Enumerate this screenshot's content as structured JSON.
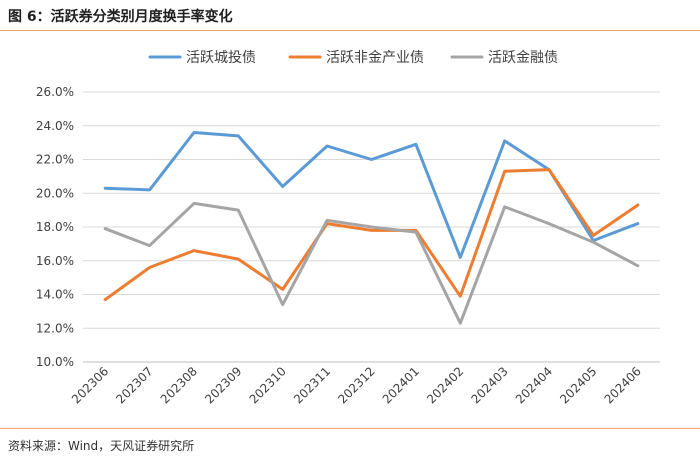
{
  "header": {
    "title": "图 6：活跃券分类别月度换手率变化"
  },
  "footer": {
    "source": "资料来源：Wind，天风证券研究所"
  },
  "chart_data": {
    "type": "line",
    "categories": [
      "202306",
      "202307",
      "202308",
      "202309",
      "202310",
      "202311",
      "202312",
      "202401",
      "202402",
      "202403",
      "202404",
      "202405",
      "202406"
    ],
    "ylim": [
      10.0,
      26.0
    ],
    "yticks": [
      "10.0%",
      "12.0%",
      "14.0%",
      "16.0%",
      "18.0%",
      "20.0%",
      "22.0%",
      "24.0%",
      "26.0%"
    ],
    "grid": true,
    "legend_position": "top",
    "series": [
      {
        "name": "活跃城投债",
        "color": "#5b9bd5",
        "values": [
          20.3,
          20.2,
          23.6,
          23.4,
          20.4,
          22.8,
          22.0,
          22.9,
          16.2,
          23.1,
          21.4,
          17.2,
          18.2
        ]
      },
      {
        "name": "活跃非金产业债",
        "color": "#ed7d31",
        "values": [
          13.7,
          15.6,
          16.6,
          16.1,
          14.3,
          18.2,
          17.8,
          17.8,
          13.9,
          21.3,
          21.4,
          17.5,
          19.3
        ]
      },
      {
        "name": "活跃金融债",
        "color": "#a5a5a5",
        "values": [
          17.9,
          16.9,
          19.4,
          19.0,
          13.4,
          18.4,
          18.0,
          17.7,
          12.3,
          19.2,
          18.2,
          17.1,
          15.7
        ]
      }
    ]
  }
}
